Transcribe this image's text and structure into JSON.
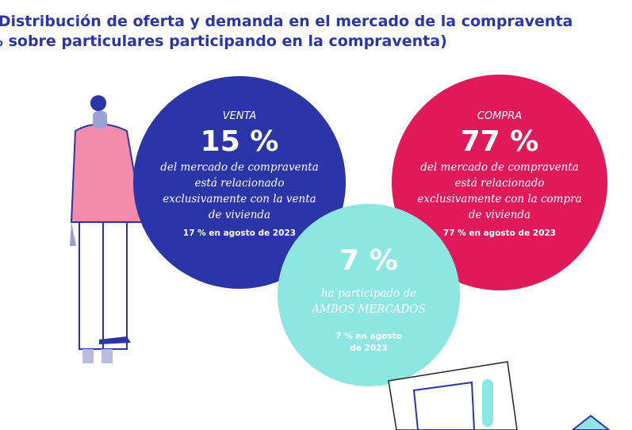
{
  "header": {
    "title": "Distribución de oferta y demanda en el mercado de la compraventa",
    "subtitle": "(% sobre particulares participando en la compraventa)"
  },
  "circles": [
    {
      "label": "VENTA",
      "percent": "15 %",
      "description": [
        "del mercado de compraventa",
        "está relacionado",
        "exclusivamente con la venta",
        "de vivienda"
      ],
      "note": [
        "17 % en agosto de 2023"
      ]
    },
    {
      "label": "COMPRA",
      "percent": "77 %",
      "description": [
        "del mercado de compraventa",
        "está relacionado",
        "exclusivamente con la compra",
        "de vivienda"
      ],
      "note": [
        "77 % en agosto de 2023"
      ]
    },
    {
      "percent": "7 %",
      "description": [
        "ha participado de",
        "AMBOS MERCADOS"
      ],
      "note": [
        "7 % en agosto",
        "de 2023"
      ]
    }
  ]
}
